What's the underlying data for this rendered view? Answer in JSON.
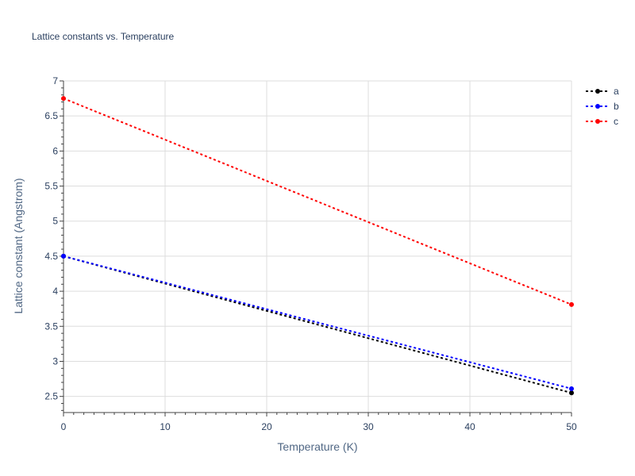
{
  "chart_data": {
    "type": "line",
    "title": "Lattice constants vs. Temperature",
    "xlabel": "Temperature (K)",
    "ylabel": "Lattice constant (Angstrom)",
    "xlim": [
      0,
      50
    ],
    "ylim": [
      2.27,
      7.0
    ],
    "x_ticks": [
      "0",
      "10",
      "20",
      "30",
      "40",
      "50"
    ],
    "y_ticks": [
      "2.5",
      "3",
      "3.5",
      "4",
      "4.5",
      "5",
      "5.5",
      "6",
      "6.5",
      "7"
    ],
    "grid": true,
    "legend_position": "top-right",
    "x": [
      0,
      50
    ],
    "series": [
      {
        "name": "a",
        "color": "#000000",
        "line_style": "dotted",
        "values": [
          4.5,
          2.55
        ]
      },
      {
        "name": "b",
        "color": "#0000ff",
        "line_style": "dotted",
        "values": [
          4.5,
          2.61
        ]
      },
      {
        "name": "c",
        "color": "#ff0000",
        "line_style": "dotted",
        "values": [
          6.75,
          3.81
        ]
      }
    ]
  }
}
